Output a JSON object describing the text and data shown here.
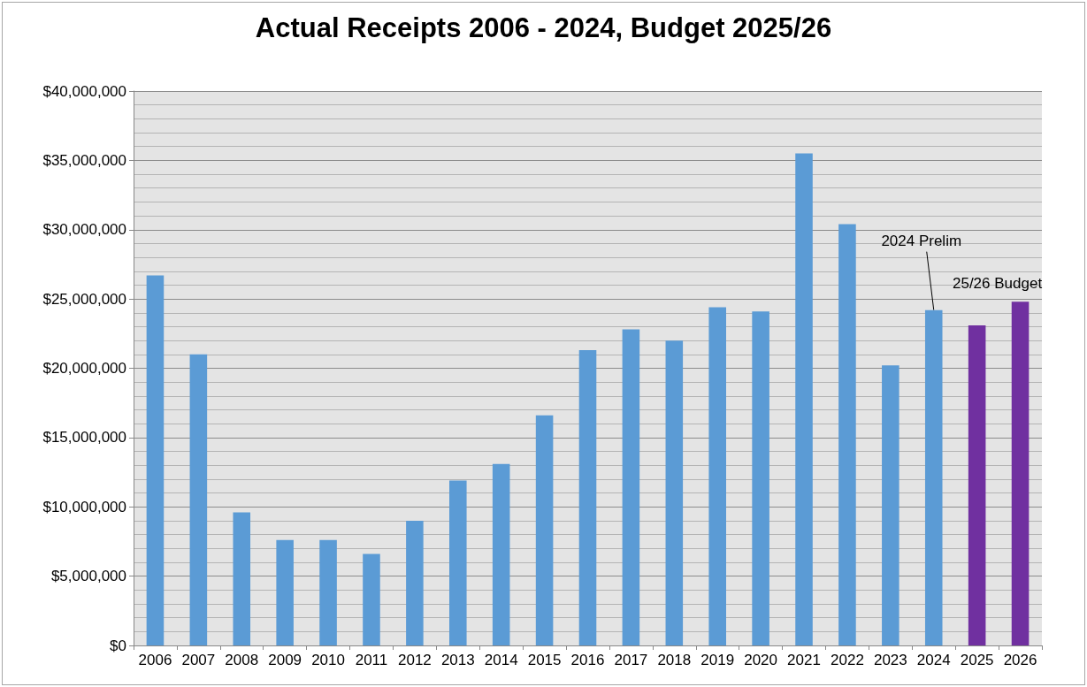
{
  "chart_data": {
    "type": "bar",
    "title": "Actual Receipts 2006 - 2024, Budget 2025/26",
    "categories": [
      "2006",
      "2007",
      "2008",
      "2009",
      "2010",
      "2011",
      "2012",
      "2013",
      "2014",
      "2015",
      "2016",
      "2017",
      "2018",
      "2019",
      "2020",
      "2021",
      "2022",
      "2023",
      "2024",
      "2025",
      "2026"
    ],
    "values": [
      26700000,
      21000000,
      9600000,
      7600000,
      7600000,
      6600000,
      9000000,
      11900000,
      13100000,
      16600000,
      21300000,
      22800000,
      22000000,
      24400000,
      24100000,
      35500000,
      30400000,
      20200000,
      24200000,
      23100000,
      24800000
    ],
    "colors": [
      "#5b9bd5",
      "#5b9bd5",
      "#5b9bd5",
      "#5b9bd5",
      "#5b9bd5",
      "#5b9bd5",
      "#5b9bd5",
      "#5b9bd5",
      "#5b9bd5",
      "#5b9bd5",
      "#5b9bd5",
      "#5b9bd5",
      "#5b9bd5",
      "#5b9bd5",
      "#5b9bd5",
      "#5b9bd5",
      "#5b9bd5",
      "#5b9bd5",
      "#5b9bd5",
      "#7030a0",
      "#7030a0"
    ],
    "ylim": [
      0,
      40000000
    ],
    "yticks": [
      {
        "value": 0,
        "label": "$0"
      },
      {
        "value": 5000000,
        "label": "$5,000,000"
      },
      {
        "value": 10000000,
        "label": "$10,000,000"
      },
      {
        "value": 15000000,
        "label": "$15,000,000"
      },
      {
        "value": 20000000,
        "label": "$20,000,000"
      },
      {
        "value": 25000000,
        "label": "$25,000,000"
      },
      {
        "value": 30000000,
        "label": "$30,000,000"
      },
      {
        "value": 35000000,
        "label": "$35,000,000"
      },
      {
        "value": 40000000,
        "label": "$40,000,000"
      }
    ],
    "grid": "y",
    "annotations": [
      {
        "text": "2024 Prelim",
        "x": "2024",
        "y": 24200000
      },
      {
        "text": "25/26 Budget",
        "x": "2026",
        "y": 24800000
      }
    ]
  }
}
